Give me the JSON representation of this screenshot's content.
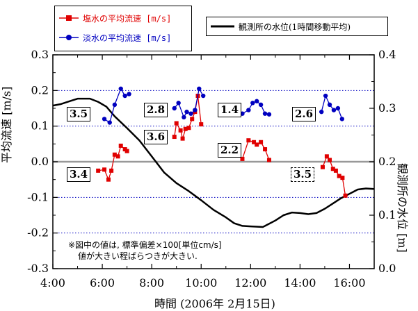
{
  "chart_data": {
    "type": "line",
    "xlabel": "時間 (2006年 2月15日)",
    "ylabel_left": "平均流速 [m/s]",
    "ylabel_right": "観測所の水位 [m]",
    "xlim": [
      "4:00",
      "17:00"
    ],
    "ylim_left": [
      -0.3,
      0.3
    ],
    "ylim_right": [
      0.0,
      0.4
    ],
    "x_ticks": [
      "4:00",
      "6:00",
      "8:00",
      "10:00",
      "12:00",
      "14:00",
      "16:00"
    ],
    "y_ticks_left": [
      "0.3",
      "0.2",
      "0.1",
      "0.0",
      "-0.1",
      "-0.2",
      "-0.3"
    ],
    "y_ticks_right": [
      "0.4",
      "0.3",
      "0.2",
      "0.1",
      "0.0"
    ],
    "legend": {
      "salt": "塩水の平均流速 [m/s]",
      "fresh": "淡水の平均流速 [m/s]",
      "level": "観測所の水位(1時間移動平均)"
    },
    "series": [
      {
        "name": "塩水の平均流速 [m/s]",
        "axis": "left",
        "color": "#e00000",
        "marker": "square",
        "segments": [
          [
            [
              "5:50",
              -0.025
            ],
            [
              "6:05",
              -0.022
            ],
            [
              "6:15",
              -0.05
            ],
            [
              "6:22",
              -0.025
            ],
            [
              "6:30",
              0.02
            ],
            [
              "6:38",
              0.015
            ],
            [
              "6:45",
              0.045
            ],
            [
              "6:55",
              0.035
            ],
            [
              "7:00",
              0.03
            ]
          ],
          [
            [
              "8:55",
              0.07
            ],
            [
              "9:00",
              0.108
            ],
            [
              "9:10",
              0.088
            ],
            [
              "9:15",
              0.065
            ],
            [
              "9:22",
              0.092
            ],
            [
              "9:30",
              0.095
            ],
            [
              "9:38",
              0.12
            ],
            [
              "9:45",
              0.14
            ],
            [
              "9:52",
              0.185
            ],
            [
              "10:00",
              0.105
            ]
          ],
          [
            [
              "11:40",
              0.008
            ],
            [
              "11:55",
              0.06
            ],
            [
              "12:08",
              0.055
            ],
            [
              "12:15",
              0.048
            ],
            [
              "12:25",
              0.055
            ],
            [
              "12:35",
              0.035
            ],
            [
              "12:45",
              0.005
            ]
          ],
          [
            [
              "14:55",
              -0.015
            ],
            [
              "15:05",
              0.015
            ],
            [
              "15:12",
              0.005
            ],
            [
              "15:20",
              -0.02
            ],
            [
              "15:27",
              -0.025
            ],
            [
              "15:35",
              -0.04
            ],
            [
              "15:43",
              -0.045
            ],
            [
              "15:50",
              -0.095
            ]
          ]
        ]
      },
      {
        "name": "淡水の平均流速 [m/s]",
        "axis": "left",
        "color": "#0000c0",
        "marker": "circle",
        "segments": [
          [
            [
              "6:05",
              0.12
            ],
            [
              "6:18",
              0.11
            ],
            [
              "6:30",
              0.16
            ],
            [
              "6:45",
              0.205
            ],
            [
              "6:55",
              0.185
            ],
            [
              "7:05",
              0.19
            ]
          ],
          [
            [
              "8:55",
              0.15
            ],
            [
              "9:05",
              0.165
            ],
            [
              "9:18",
              0.125
            ],
            [
              "9:25",
              0.14
            ],
            [
              "9:35",
              0.135
            ],
            [
              "9:45",
              0.145
            ],
            [
              "9:55",
              0.205
            ],
            [
              "10:05",
              0.185
            ]
          ],
          [
            [
              "11:40",
              0.135
            ],
            [
              "11:55",
              0.145
            ],
            [
              "12:05",
              0.165
            ],
            [
              "12:15",
              0.17
            ],
            [
              "12:25",
              0.16
            ],
            [
              "12:35",
              0.135
            ],
            [
              "12:45",
              0.133
            ]
          ],
          [
            [
              "14:52",
              0.14
            ],
            [
              "15:02",
              0.185
            ],
            [
              "15:12",
              0.16
            ],
            [
              "15:22",
              0.145
            ],
            [
              "15:32",
              0.15
            ],
            [
              "15:42",
              0.12
            ]
          ]
        ]
      },
      {
        "name": "観測所の水位(1時間移動平均)",
        "axis": "right",
        "color": "#000000",
        "marker": "none",
        "points": [
          [
            "4:00",
            0.305
          ],
          [
            "4:20",
            0.308
          ],
          [
            "4:40",
            0.313
          ],
          [
            "5:00",
            0.318
          ],
          [
            "5:30",
            0.318
          ],
          [
            "5:50",
            0.312
          ],
          [
            "6:10",
            0.303
          ],
          [
            "6:30",
            0.285
          ],
          [
            "7:00",
            0.263
          ],
          [
            "7:30",
            0.24
          ],
          [
            "8:00",
            0.21
          ],
          [
            "8:30",
            0.18
          ],
          [
            "9:00",
            0.16
          ],
          [
            "9:30",
            0.145
          ],
          [
            "10:00",
            0.128
          ],
          [
            "10:30",
            0.11
          ],
          [
            "11:00",
            0.096
          ],
          [
            "11:20",
            0.085
          ],
          [
            "11:40",
            0.08
          ],
          [
            "12:00",
            0.079
          ],
          [
            "12:30",
            0.078
          ],
          [
            "13:00",
            0.09
          ],
          [
            "13:20",
            0.1
          ],
          [
            "13:40",
            0.105
          ],
          [
            "14:00",
            0.104
          ],
          [
            "14:20",
            0.102
          ],
          [
            "14:40",
            0.104
          ],
          [
            "15:00",
            0.112
          ],
          [
            "15:20",
            0.122
          ],
          [
            "15:40",
            0.132
          ],
          [
            "16:00",
            0.14
          ],
          [
            "16:20",
            0.148
          ],
          [
            "16:40",
            0.15
          ],
          [
            "17:00",
            0.149
          ]
        ]
      }
    ],
    "reference_lines_left": [
      0.2,
      0.1,
      -0.1,
      -0.2
    ],
    "zero_line_left": 0.0,
    "annotations": [
      {
        "text": "3.5",
        "group": "fresh-1"
      },
      {
        "text": "3.4",
        "group": "salt-1"
      },
      {
        "text": "2.8",
        "group": "fresh-2"
      },
      {
        "text": "3.6",
        "group": "salt-2"
      },
      {
        "text": "1.4",
        "group": "fresh-3"
      },
      {
        "text": "2.2",
        "group": "salt-3"
      },
      {
        "text": "2.6",
        "group": "fresh-4"
      },
      {
        "text": "3.5",
        "group": "salt-4",
        "style": "dashed"
      }
    ],
    "note": [
      "※図中の値は, 標準偏差×100[単位cm/s]",
      "値が大きい程ばらつきが大きい."
    ]
  }
}
